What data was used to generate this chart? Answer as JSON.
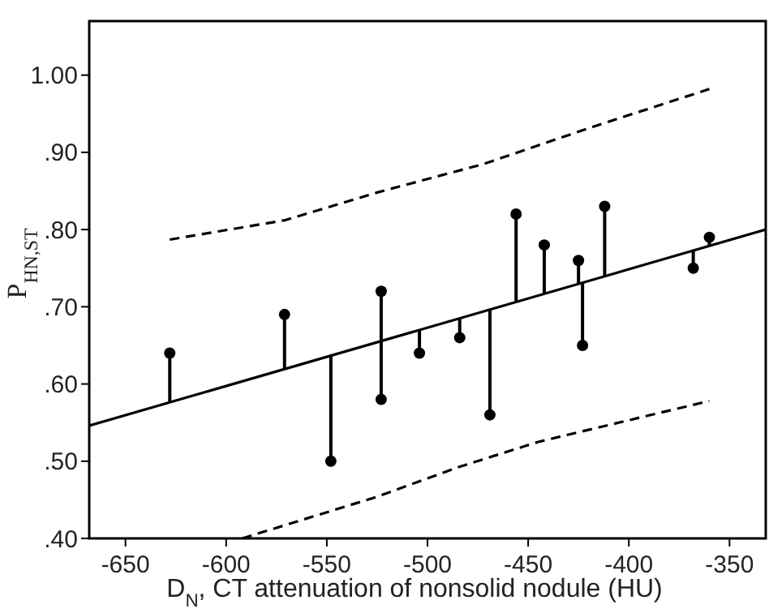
{
  "chart_data": {
    "type": "scatter",
    "xlabel": "D$_{N}$, CT attenuation of nonsolid nodule (HU)",
    "ylabel": "P$_{HN,ST}$",
    "xlim": [
      -668,
      -332
    ],
    "xticks": [
      -650,
      -600,
      -550,
      -500,
      -450,
      -400,
      -350
    ],
    "ylim": [
      0.4,
      1.07
    ],
    "yticks": [
      {
        "value": 0.4,
        "label": ".40"
      },
      {
        "value": 0.5,
        "label": ".50"
      },
      {
        "value": 0.6,
        "label": ".60"
      },
      {
        "value": 0.7,
        "label": ".70"
      },
      {
        "value": 0.8,
        "label": ".80"
      },
      {
        "value": 0.9,
        "label": ".90"
      },
      {
        "value": 1.0,
        "label": "1.00"
      }
    ],
    "grid": false,
    "series": [
      {
        "color": "#000000",
        "marker": "circle",
        "x": [
          -628,
          -571,
          -548,
          -523,
          -523,
          -504,
          -484,
          -469,
          -456,
          -442,
          -425,
          -423,
          -412,
          -368,
          -360
        ],
        "values": [
          0.64,
          0.69,
          0.5,
          0.72,
          0.58,
          0.64,
          0.66,
          0.56,
          0.82,
          0.78,
          0.76,
          0.65,
          0.83,
          0.75,
          0.79
        ],
        "errors": [
          [
            0.576,
            0.64
          ],
          [
            0.619,
            0.69
          ],
          [
            0.5,
            0.637
          ],
          [
            0.656,
            0.72
          ],
          [
            0.58,
            0.656
          ],
          [
            0.64,
            0.67
          ],
          [
            0.66,
            0.685
          ],
          [
            0.56,
            0.696
          ],
          [
            0.706,
            0.82
          ],
          [
            0.717,
            0.78
          ],
          [
            0.73,
            0.76
          ],
          [
            0.65,
            0.731
          ],
          [
            0.74,
            0.83
          ],
          [
            0.75,
            0.773
          ],
          [
            0.779,
            0.79
          ]
        ]
      },
      {
        "type": "line",
        "color": "#000000",
        "line_style": "solid",
        "x": [
          -668,
          -332
        ],
        "values": [
          0.546,
          0.8
        ]
      },
      {
        "type": "line",
        "color": "#000000",
        "line_style": "dashed",
        "x": [
          -628,
          -571,
          -525,
          -472,
          -418,
          -360
        ],
        "values": [
          0.787,
          0.812,
          0.848,
          0.885,
          0.933,
          0.982
        ]
      },
      {
        "type": "line",
        "color": "#000000",
        "line_style": "dashed",
        "x": [
          -592,
          -525,
          -485,
          -445,
          -360
        ],
        "values": [
          0.4,
          0.454,
          0.492,
          0.525,
          0.578
        ]
      }
    ]
  }
}
